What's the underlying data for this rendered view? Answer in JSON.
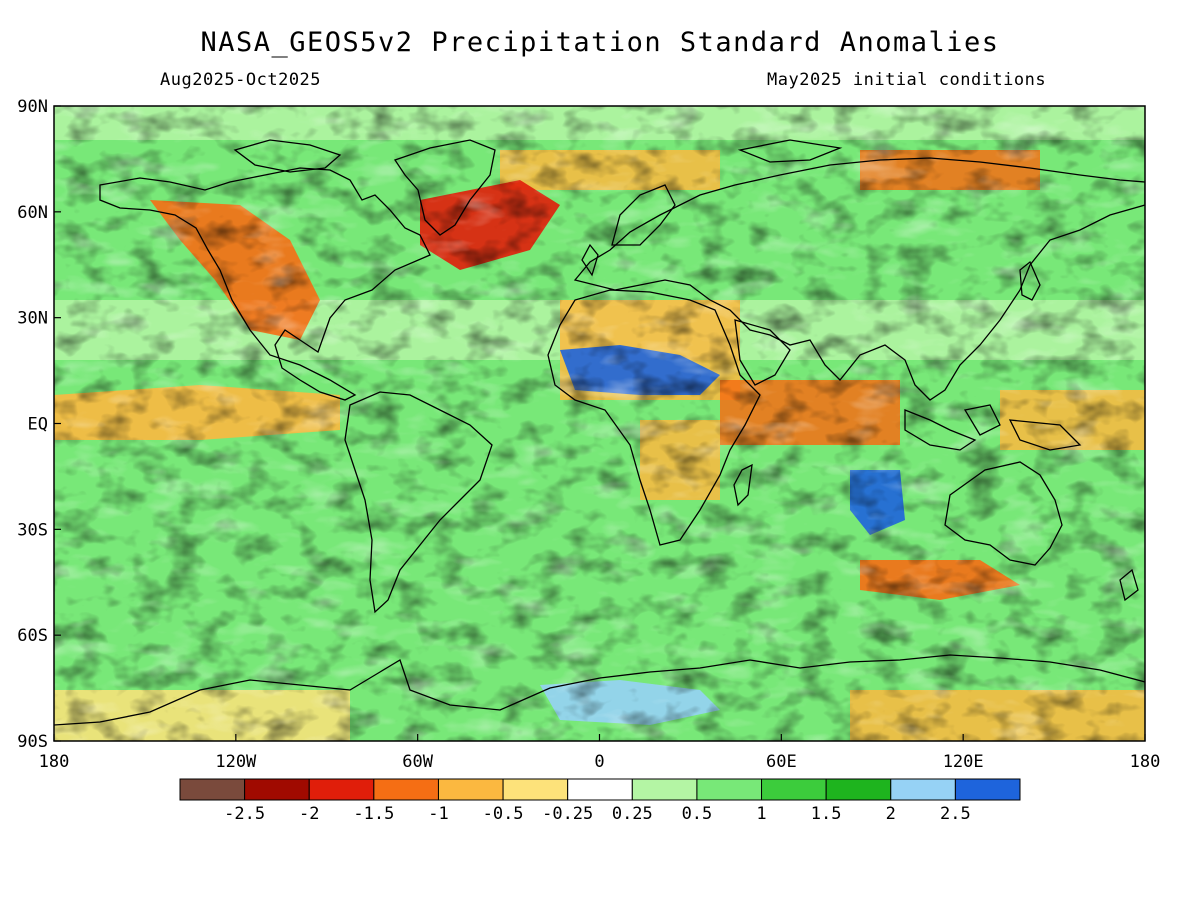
{
  "title": "NASA_GEOS5v2 Precipitation Standard Anomalies",
  "subtitle_left": "Aug2025-Oct2025",
  "subtitle_right": "May2025 initial conditions",
  "lat_labels": [
    "90N",
    "60N",
    "30N",
    "EQ",
    "30S",
    "60S",
    "90S"
  ],
  "lon_labels": [
    "180",
    "120W",
    "60W",
    "0",
    "60E",
    "120E",
    "180"
  ],
  "colorbar": {
    "colors": [
      "#7a4a3c",
      "#a00a00",
      "#e01e0a",
      "#f56e14",
      "#fbb840",
      "#fde27a",
      "#ffffff",
      "#b4f5a4",
      "#78e878",
      "#3ccc3c",
      "#1eb41e",
      "#96d2f5",
      "#1e64dc"
    ],
    "labels": [
      "-2.5",
      "-2",
      "-1.5",
      "-1",
      "-0.5",
      "-0.25",
      "0.25",
      "0.5",
      "1",
      "1.5",
      "2",
      "2.5"
    ]
  },
  "map_regions": [
    {
      "name": "north-america-west-dry",
      "value": -1.5
    },
    {
      "name": "north-atlantic-dry",
      "value": -2.0
    },
    {
      "name": "sahel-wet",
      "value": 2.5
    },
    {
      "name": "equatorial-pacific-dry",
      "value": -1.0
    },
    {
      "name": "western-australia-wet",
      "value": 2.5
    },
    {
      "name": "antarctic-coast-wet",
      "value": 2.0
    },
    {
      "name": "southern-ocean-dry",
      "value": -1.5
    }
  ]
}
